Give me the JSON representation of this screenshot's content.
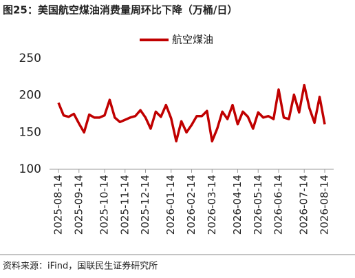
{
  "chart_data": {
    "type": "line",
    "title": "图25：美国航空煤油消费量周环比下降（万桶/日）",
    "source": "资料来源：iFind，国联民生证券研究所",
    "categories": [
      "2025-08-14",
      null,
      null,
      null,
      "2025-09-14",
      null,
      null,
      null,
      null,
      "2025-10-14",
      null,
      null,
      null,
      "2025-11-14",
      null,
      null,
      null,
      "2025-12-14",
      null,
      null,
      null,
      null,
      "2026-01-14",
      null,
      null,
      null,
      "2026-02-14",
      null,
      null,
      null,
      "2026-03-14",
      null,
      null,
      null,
      null,
      "2026-04-14",
      null,
      null,
      null,
      "2026-05-14",
      null,
      null,
      null,
      "2026-06-14",
      null,
      null,
      null,
      null,
      "2026-07-14",
      null,
      null,
      null,
      "2026-08-14"
    ],
    "series": [
      {
        "name": "航空煤油",
        "color": "#c00000",
        "values": [
          190,
          173,
          171,
          175,
          162,
          150,
          174,
          170,
          170,
          173,
          194,
          170,
          164,
          167,
          170,
          172,
          180,
          170,
          155,
          178,
          171,
          187,
          169,
          138,
          165,
          150,
          160,
          172,
          172,
          179,
          138,
          155,
          178,
          168,
          187,
          161,
          178,
          171,
          155,
          177,
          170,
          172,
          168,
          208,
          170,
          168,
          201,
          177,
          214,
          183,
          163,
          198,
          161
        ]
      }
    ],
    "ylim": [
      100,
      250
    ],
    "yticks": [
      100,
      150,
      200,
      250
    ],
    "legend": "top"
  }
}
